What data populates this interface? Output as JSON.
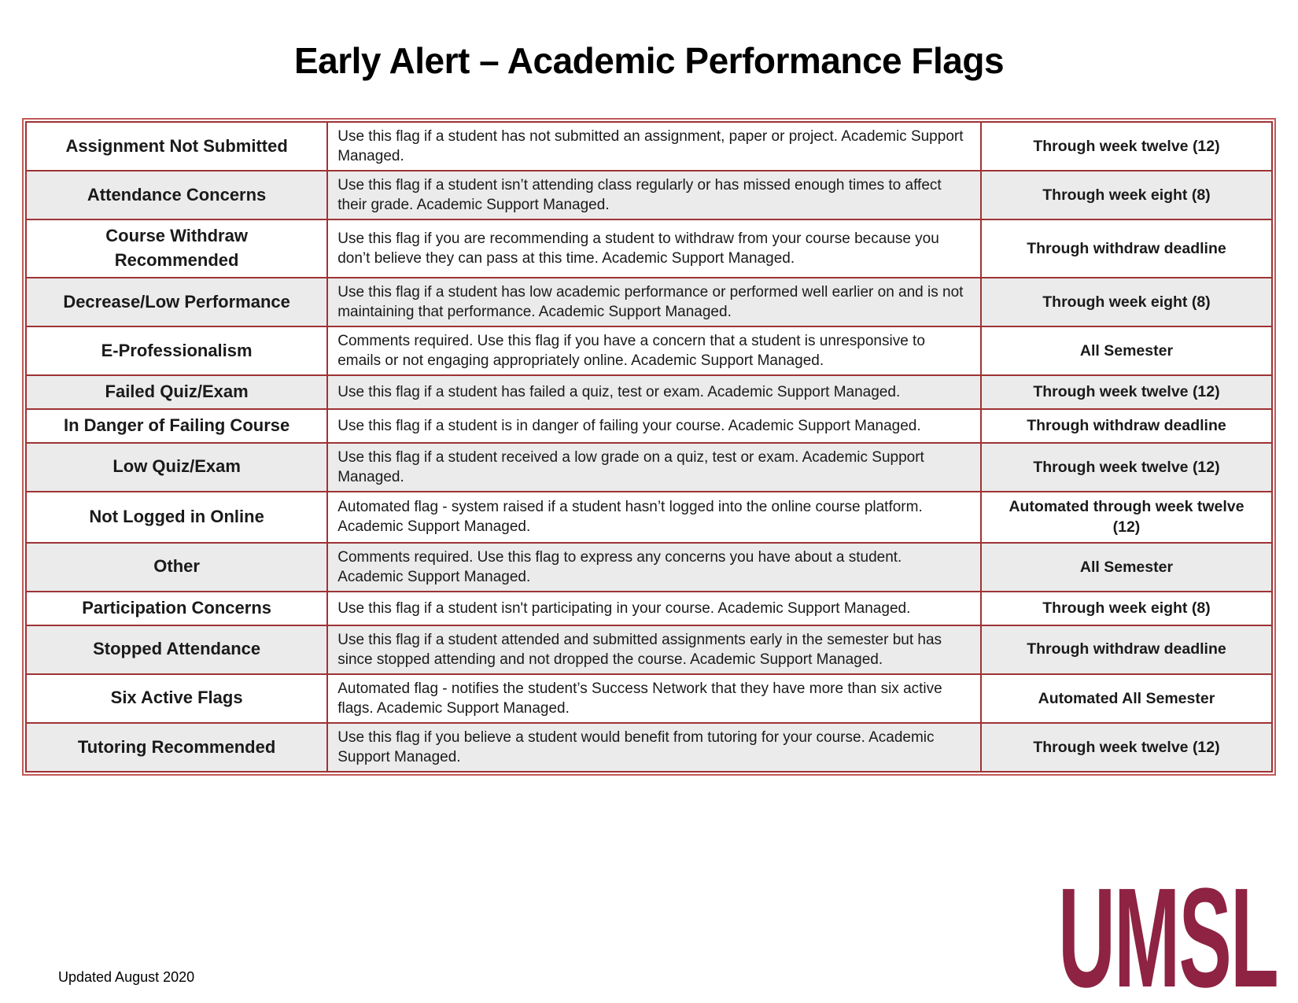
{
  "page": {
    "title": "Early Alert – Academic Performance Flags",
    "footer_note": "Updated August 2020",
    "logo_text": "UMSL"
  },
  "colors": {
    "border_dark": "#9e3335",
    "border_light": "#c35a58",
    "row_alt": "#ebebeb",
    "logo": "#8e2344"
  },
  "table": {
    "rows": [
      {
        "flag": "Assignment Not Submitted",
        "description": "Use this flag if a student has not submitted an assignment, paper or project. Academic Support Managed.",
        "duration": "Through week twelve (12)"
      },
      {
        "flag": "Attendance Concerns",
        "description": "Use this flag if a student isn’t attending class regularly or has missed enough times to affect their grade. Academic Support Managed.",
        "duration": "Through week eight (8)"
      },
      {
        "flag": "Course Withdraw Recommended",
        "description": "Use this flag if you are recommending a student to withdraw from your course because you don’t believe they can pass at this time. Academic Support Managed.",
        "duration": "Through withdraw deadline"
      },
      {
        "flag": "Decrease/Low Performance",
        "description": "Use this flag if a student has low academic performance or performed well earlier on and is not maintaining that performance. Academic Support Managed.",
        "duration": "Through week eight (8)"
      },
      {
        "flag": "E-Professionalism",
        "description": "Comments required. Use this flag if you have a concern that a student is unresponsive to emails or not engaging appropriately online. Academic Support Managed.",
        "duration": "All Semester"
      },
      {
        "flag": "Failed Quiz/Exam",
        "description": "Use this flag if a student has failed a quiz, test or exam. Academic Support Managed.",
        "duration": "Through week twelve (12)"
      },
      {
        "flag": "In Danger of Failing Course",
        "description": "Use this flag if a student is in danger of failing your course. Academic Support Managed.",
        "duration": "Through withdraw deadline"
      },
      {
        "flag": "Low Quiz/Exam",
        "description": "Use this flag if a student received a low grade on a quiz, test or exam. Academic Support Managed.",
        "duration": "Through week twelve (12)"
      },
      {
        "flag": "Not Logged in Online",
        "description": "Automated flag - system raised if a student hasn’t logged into the online course platform. Academic Support Managed.",
        "duration": "Automated through week twelve (12)"
      },
      {
        "flag": "Other",
        "description": "Comments required. Use this flag to express any concerns you have about a student. Academic Support Managed.",
        "duration": "All Semester"
      },
      {
        "flag": "Participation Concerns",
        "description": "Use this flag if a student isn't participating in your course. Academic Support Managed.",
        "duration": "Through week eight (8)"
      },
      {
        "flag": "Stopped Attendance",
        "description": "Use this flag if a student attended and submitted assignments early in the semester but has since stopped attending and not dropped the course. Academic Support Managed.",
        "duration": "Through withdraw deadline"
      },
      {
        "flag": "Six Active Flags",
        "description": "Automated flag - notifies the student’s Success Network that they have more than six active flags. Academic Support Managed.",
        "duration": "Automated All Semester"
      },
      {
        "flag": "Tutoring Recommended",
        "description": "Use this flag if you believe a student would benefit from tutoring for your course. Academic Support Managed.",
        "duration": "Through week twelve (12)"
      }
    ]
  }
}
